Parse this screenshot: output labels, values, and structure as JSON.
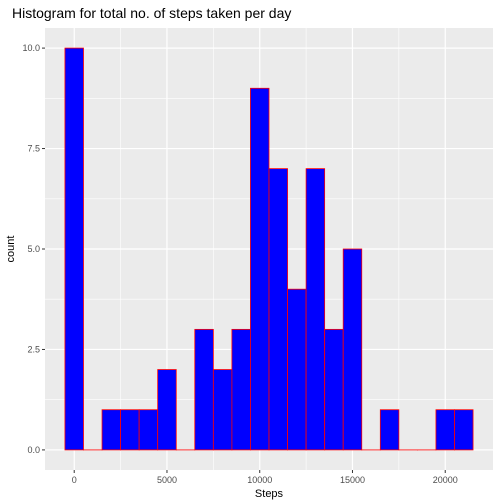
{
  "chart_data": {
    "type": "bar",
    "title": "Histogram for total no. of steps taken per day",
    "xlabel": "Steps",
    "ylabel": "count",
    "bin_width": 1000,
    "bins": [
      {
        "start": -500,
        "end": 500,
        "count": 10
      },
      {
        "start": 500,
        "end": 1500,
        "count": 0
      },
      {
        "start": 1500,
        "end": 2500,
        "count": 1
      },
      {
        "start": 2500,
        "end": 3500,
        "count": 1
      },
      {
        "start": 3500,
        "end": 4500,
        "count": 1
      },
      {
        "start": 4500,
        "end": 5500,
        "count": 2
      },
      {
        "start": 5500,
        "end": 6500,
        "count": 0
      },
      {
        "start": 6500,
        "end": 7500,
        "count": 3
      },
      {
        "start": 7500,
        "end": 8500,
        "count": 2
      },
      {
        "start": 8500,
        "end": 9500,
        "count": 3
      },
      {
        "start": 9500,
        "end": 10500,
        "count": 9
      },
      {
        "start": 10500,
        "end": 11500,
        "count": 7
      },
      {
        "start": 11500,
        "end": 12500,
        "count": 4
      },
      {
        "start": 12500,
        "end": 13500,
        "count": 7
      },
      {
        "start": 13500,
        "end": 14500,
        "count": 3
      },
      {
        "start": 14500,
        "end": 15500,
        "count": 5
      },
      {
        "start": 15500,
        "end": 16500,
        "count": 0
      },
      {
        "start": 16500,
        "end": 17500,
        "count": 1
      },
      {
        "start": 17500,
        "end": 18500,
        "count": 0
      },
      {
        "start": 18500,
        "end": 19500,
        "count": 0
      },
      {
        "start": 19500,
        "end": 20500,
        "count": 1
      },
      {
        "start": 20500,
        "end": 21500,
        "count": 1
      }
    ],
    "x_ticks": [
      0,
      5000,
      10000,
      15000,
      20000
    ],
    "x_tick_labels": [
      "0",
      "5000",
      "10000",
      "15000",
      "20000"
    ],
    "y_ticks": [
      0,
      2.5,
      5,
      7.5,
      10
    ],
    "y_tick_labels": [
      "0.0",
      "2.5",
      "5.0",
      "7.5",
      "10.0"
    ],
    "xlim": [
      -1575,
      22575
    ],
    "ylim": [
      -0.5,
      10.5
    ],
    "grid": true,
    "legend": "none",
    "colors": {
      "fill": "#0000FF",
      "outline": "#FF0000",
      "panel": "#EBEBEB",
      "grid": "#FFFFFF"
    }
  }
}
